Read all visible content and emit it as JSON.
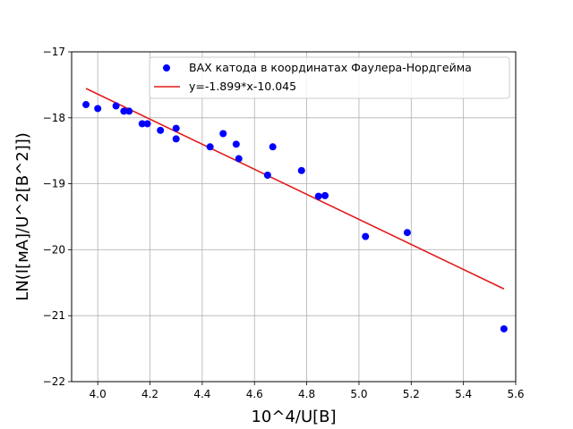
{
  "chart_data": {
    "type": "scatter",
    "xlabel": "10^4/U[B]",
    "ylabel": "LN(I[мА]/U^2[B^2]])",
    "xlim": [
      3.9,
      5.6
    ],
    "ylim": [
      -22,
      -17
    ],
    "x_ticks": [
      4.0,
      4.2,
      4.4,
      4.6,
      4.8,
      5.0,
      5.2,
      5.4,
      5.6
    ],
    "y_ticks": [
      -22,
      -21,
      -20,
      -19,
      -18,
      -17
    ],
    "x_tick_labels": [
      "4.0",
      "4.2",
      "4.4",
      "4.6",
      "4.8",
      "5.0",
      "5.2",
      "5.4",
      "5.6"
    ],
    "y_tick_labels": [
      "−22",
      "−21",
      "−20",
      "−19",
      "−18",
      "−17"
    ],
    "grid": true,
    "legend_position": "top-right",
    "series": [
      {
        "name": "ВАХ катода в координатах Фаулера-Нордгейма",
        "kind": "scatter",
        "color": "#0000ff",
        "x": [
          3.955,
          4.0,
          4.07,
          4.1,
          4.12,
          4.17,
          4.19,
          4.24,
          4.3,
          4.3,
          4.43,
          4.48,
          4.53,
          4.54,
          4.65,
          4.67,
          4.78,
          4.845,
          4.87,
          5.025,
          5.185,
          5.555
        ],
        "y": [
          -17.8,
          -17.86,
          -17.82,
          -17.9,
          -17.9,
          -18.09,
          -18.09,
          -18.19,
          -18.16,
          -18.32,
          -18.44,
          -18.24,
          -18.4,
          -18.62,
          -18.87,
          -18.44,
          -18.8,
          -19.19,
          -19.18,
          -19.8,
          -19.74,
          -21.2
        ]
      },
      {
        "name": "y=-1.899*x-10.045",
        "kind": "line",
        "color": "#e31a1c",
        "x": [
          3.955,
          5.555
        ],
        "y": [
          -17.556,
          -20.594
        ]
      }
    ]
  }
}
